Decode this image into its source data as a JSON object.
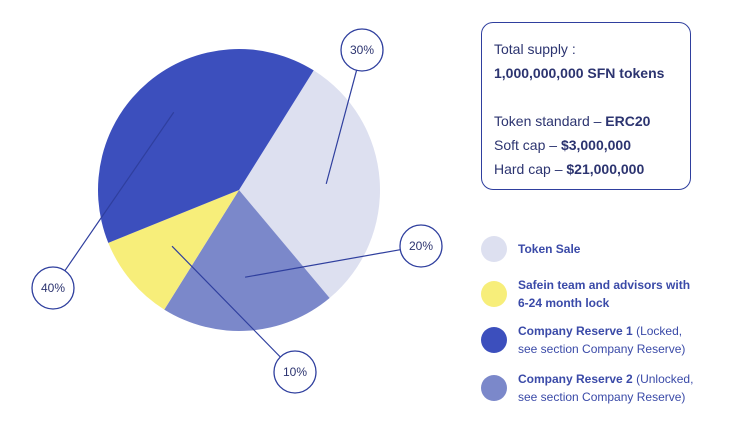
{
  "chart_data": {
    "type": "pie",
    "slices": [
      {
        "label": "Token Sale",
        "value": 30,
        "percent_label": "30%",
        "color": "#dde0f0"
      },
      {
        "label": "Company Reserve 2",
        "value": 20,
        "percent_label": "20%",
        "color": "#7b88ca"
      },
      {
        "label": "Safein team and advisors with 6-24 month lock",
        "value": 10,
        "percent_label": "10%",
        "color": "#f7ee7a"
      },
      {
        "label": "Company Reserve 1",
        "value": 40,
        "percent_label": "40%",
        "color": "#3c4fbd"
      }
    ],
    "start_angle_deg": -58,
    "legend_position": "bottom-right"
  },
  "info": {
    "total_label": "Total supply :",
    "total_value": "1,000,000,000 SFN tokens",
    "standard_label": "Token standard – ",
    "standard_value": "ERC20",
    "softcap_label": "Soft cap – ",
    "softcap_value": "$3,000,000",
    "hardcap_label": "Hard cap – ",
    "hardcap_value": "$21,000,000"
  },
  "legend": {
    "items": [
      {
        "name": "Token Sale",
        "bold": "Token Sale",
        "rest": "",
        "rest2": "",
        "color": "#dde0f0"
      },
      {
        "name": "Team",
        "bold": "Safein team and advisors with",
        "rest": "",
        "bold2": "6-24 month lock",
        "rest2": "",
        "color": "#f7ee7a"
      },
      {
        "name": "Reserve1",
        "bold": "Company Reserve 1",
        "rest": " (Locked,",
        "rest2": "see section Company Reserve)",
        "color": "#3c4fbd"
      },
      {
        "name": "Reserve2",
        "bold": "Company Reserve 2",
        "rest": " (Unlocked,",
        "rest2": "see section Company Reserve)",
        "color": "#7b88ca"
      }
    ]
  }
}
